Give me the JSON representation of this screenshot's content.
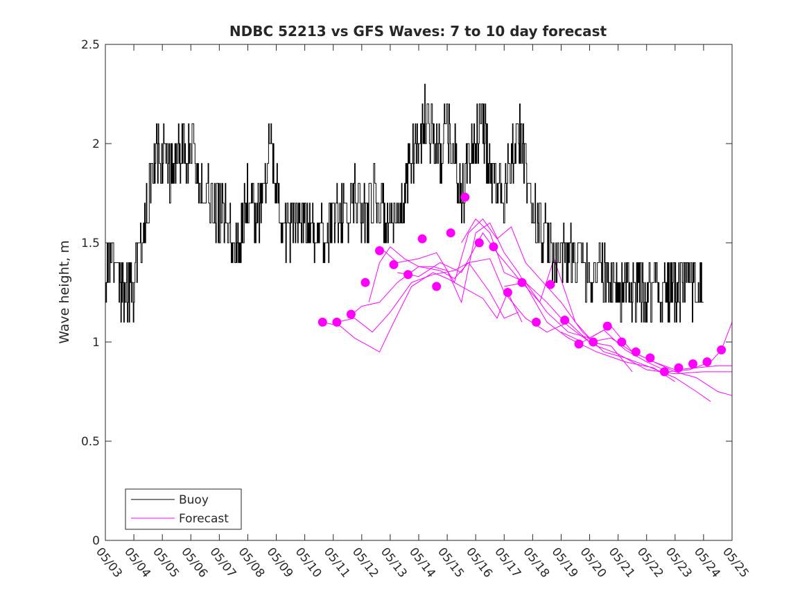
{
  "chart_data": {
    "type": "line",
    "title": "NDBC 52213 vs GFS Waves: 7 to 10 day forecast",
    "xlabel": "",
    "ylabel": "Wave height, m",
    "xlim": [
      "05/03",
      "05/25"
    ],
    "ylim": [
      0,
      2.5
    ],
    "x_ticks": [
      "05/03",
      "05/04",
      "05/05",
      "05/06",
      "05/07",
      "05/08",
      "05/09",
      "05/10",
      "05/11",
      "05/12",
      "05/13",
      "05/14",
      "05/15",
      "05/16",
      "05/17",
      "05/18",
      "05/19",
      "05/20",
      "05/21",
      "05/22",
      "05/23",
      "05/24",
      "05/25"
    ],
    "y_ticks": [
      "0",
      "0.5",
      "1",
      "1.5",
      "2",
      "2.5"
    ],
    "grid": false,
    "legend": {
      "position": "bottom-left",
      "entries": [
        "Buoy",
        "Forecast"
      ]
    },
    "colors": {
      "buoy": "#000000",
      "forecast": "#ff00ff"
    },
    "buoy": {
      "name": "Buoy",
      "anchors": [
        [
          "05/03 00:00",
          1.35
        ],
        [
          "05/03 06:00",
          1.45
        ],
        [
          "05/03 12:00",
          1.3
        ],
        [
          "05/03 18:00",
          1.25
        ],
        [
          "05/04 00:00",
          1.28
        ],
        [
          "05/04 06:00",
          1.45
        ],
        [
          "05/04 12:00",
          1.7
        ],
        [
          "05/04 18:00",
          1.95
        ],
        [
          "05/05 00:00",
          1.93
        ],
        [
          "05/05 06:00",
          1.88
        ],
        [
          "05/05 12:00",
          1.92
        ],
        [
          "05/05 18:00",
          1.98
        ],
        [
          "05/06 00:00",
          2.0
        ],
        [
          "05/06 06:00",
          1.85
        ],
        [
          "05/06 12:00",
          1.72
        ],
        [
          "05/06 18:00",
          1.68
        ],
        [
          "05/07 00:00",
          1.66
        ],
        [
          "05/07 06:00",
          1.62
        ],
        [
          "05/07 12:00",
          1.5
        ],
        [
          "05/07 18:00",
          1.55
        ],
        [
          "05/08 00:00",
          1.72
        ],
        [
          "05/08 06:00",
          1.66
        ],
        [
          "05/08 12:00",
          1.72
        ],
        [
          "05/08 18:00",
          1.95
        ],
        [
          "05/09 00:00",
          1.8
        ],
        [
          "05/09 06:00",
          1.62
        ],
        [
          "05/09 12:00",
          1.55
        ],
        [
          "05/09 18:00",
          1.62
        ],
        [
          "05/10 00:00",
          1.62
        ],
        [
          "05/10 06:00",
          1.58
        ],
        [
          "05/10 12:00",
          1.5
        ],
        [
          "05/10 18:00",
          1.55
        ],
        [
          "05/11 00:00",
          1.6
        ],
        [
          "05/11 06:00",
          1.68
        ],
        [
          "05/11 12:00",
          1.62
        ],
        [
          "05/11 18:00",
          1.75
        ],
        [
          "05/12 00:00",
          1.62
        ],
        [
          "05/12 06:00",
          1.7
        ],
        [
          "05/12 12:00",
          1.75
        ],
        [
          "05/12 18:00",
          1.62
        ],
        [
          "05/13 00:00",
          1.58
        ],
        [
          "05/13 06:00",
          1.55
        ],
        [
          "05/13 12:00",
          1.72
        ],
        [
          "05/13 18:00",
          1.95
        ],
        [
          "05/14 00:00",
          2.0
        ],
        [
          "05/14 06:00",
          2.15
        ],
        [
          "05/14 12:00",
          2.05
        ],
        [
          "05/14 18:00",
          1.92
        ],
        [
          "05/15 00:00",
          2.1
        ],
        [
          "05/15 06:00",
          1.95
        ],
        [
          "05/15 12:00",
          1.7
        ],
        [
          "05/15 18:00",
          1.9
        ],
        [
          "05/16 00:00",
          2.05
        ],
        [
          "05/16 06:00",
          2.1
        ],
        [
          "05/16 12:00",
          1.88
        ],
        [
          "05/16 18:00",
          1.82
        ],
        [
          "05/17 00:00",
          1.78
        ],
        [
          "05/17 06:00",
          1.95
        ],
        [
          "05/17 12:00",
          2.08
        ],
        [
          "05/17 18:00",
          1.85
        ],
        [
          "05/18 00:00",
          1.65
        ],
        [
          "05/18 06:00",
          1.58
        ],
        [
          "05/18 12:00",
          1.5
        ],
        [
          "05/18 18:00",
          1.45
        ],
        [
          "05/19 00:00",
          1.42
        ],
        [
          "05/19 06:00",
          1.45
        ],
        [
          "05/19 12:00",
          1.4
        ],
        [
          "05/19 18:00",
          1.38
        ],
        [
          "05/20 00:00",
          1.3
        ],
        [
          "05/20 06:00",
          1.4
        ],
        [
          "05/20 12:00",
          1.32
        ],
        [
          "05/20 18:00",
          1.35
        ],
        [
          "05/21 00:00",
          1.25
        ],
        [
          "05/21 06:00",
          1.3
        ],
        [
          "05/21 12:00",
          1.22
        ],
        [
          "05/21 18:00",
          1.28
        ],
        [
          "05/22 00:00",
          1.25
        ],
        [
          "05/22 06:00",
          1.3
        ],
        [
          "05/22 12:00",
          1.25
        ],
        [
          "05/22 18:00",
          1.28
        ],
        [
          "05/23 00:00",
          1.25
        ],
        [
          "05/23 06:00",
          1.28
        ],
        [
          "05/23 12:00",
          1.25
        ],
        [
          "05/23 18:00",
          1.3
        ],
        [
          "05/24 00:00",
          1.25
        ]
      ]
    },
    "forecast_points": [
      [
        "05/10 15:00",
        1.1
      ],
      [
        "05/11 03:00",
        1.1
      ],
      [
        "05/11 15:00",
        1.14
      ],
      [
        "05/12 03:00",
        1.3
      ],
      [
        "05/12 15:00",
        1.46
      ],
      [
        "05/13 03:00",
        1.39
      ],
      [
        "05/13 15:00",
        1.34
      ],
      [
        "05/14 03:00",
        1.52
      ],
      [
        "05/14 15:00",
        1.28
      ],
      [
        "05/15 03:00",
        1.55
      ],
      [
        "05/15 15:00",
        1.73
      ],
      [
        "05/16 03:00",
        1.5
      ],
      [
        "05/16 15:00",
        1.48
      ],
      [
        "05/17 03:00",
        1.25
      ],
      [
        "05/17 15:00",
        1.3
      ],
      [
        "05/18 03:00",
        1.1
      ],
      [
        "05/18 15:00",
        1.29
      ],
      [
        "05/19 03:00",
        1.11
      ],
      [
        "05/19 15:00",
        0.99
      ],
      [
        "05/20 03:00",
        1.0
      ],
      [
        "05/20 15:00",
        1.08
      ],
      [
        "05/21 03:00",
        1.0
      ],
      [
        "05/21 15:00",
        0.95
      ],
      [
        "05/22 03:00",
        0.92
      ],
      [
        "05/22 15:00",
        0.85
      ],
      [
        "05/23 03:00",
        0.87
      ],
      [
        "05/23 15:00",
        0.89
      ],
      [
        "05/24 03:00",
        0.9
      ],
      [
        "05/24 15:00",
        0.96
      ]
    ],
    "forecast_series": [
      {
        "values": [
          [
            "05/10 15:00",
            1.1
          ],
          [
            "05/11 06:00",
            1.08
          ],
          [
            "05/11 18:00",
            1.02
          ],
          [
            "05/12 06:00",
            0.98
          ],
          [
            "05/12 15:00",
            0.95
          ],
          [
            "05/13 03:00",
            1.1
          ],
          [
            "05/13 18:00",
            1.28
          ],
          [
            "05/14 12:00",
            1.35
          ],
          [
            "05/15 00:00",
            1.32
          ],
          [
            "05/15 12:00",
            1.28
          ],
          [
            "05/16 06:00",
            1.22
          ],
          [
            "05/16 18:00",
            1.12
          ],
          [
            "05/17 03:00",
            1.25
          ],
          [
            "05/17 15:00",
            1.1
          ]
        ]
      },
      {
        "values": [
          [
            "05/11 03:00",
            1.1
          ],
          [
            "05/11 18:00",
            1.12
          ],
          [
            "05/12 09:00",
            1.05
          ],
          [
            "05/13 00:00",
            1.15
          ],
          [
            "05/13 18:00",
            1.3
          ],
          [
            "05/14 12:00",
            1.34
          ],
          [
            "05/15 06:00",
            1.36
          ],
          [
            "05/15 18:00",
            1.4
          ],
          [
            "05/16 12:00",
            1.25
          ],
          [
            "05/17 00:00",
            1.12
          ],
          [
            "05/17 12:00",
            1.15
          ]
        ]
      },
      {
        "values": [
          [
            "05/11 12:00",
            1.12
          ],
          [
            "05/12 00:00",
            1.18
          ],
          [
            "05/12 15:00",
            1.2
          ],
          [
            "05/13 06:00",
            1.3
          ],
          [
            "05/14 00:00",
            1.38
          ],
          [
            "05/14 18:00",
            1.36
          ],
          [
            "05/15 06:00",
            1.32
          ],
          [
            "05/15 18:00",
            1.4
          ],
          [
            "05/16 12:00",
            1.42
          ],
          [
            "05/17 00:00",
            1.25
          ],
          [
            "05/17 18:00",
            1.12
          ],
          [
            "05/18 12:00",
            1.05
          ],
          [
            "05/19 06:00",
            1.1
          ],
          [
            "05/20 00:00",
            1.0
          ],
          [
            "05/20 18:00",
            0.98
          ],
          [
            "05/21 12:00",
            0.85
          ]
        ]
      },
      {
        "values": [
          [
            "05/12 06:00",
            1.2
          ],
          [
            "05/12 15:00",
            1.4
          ],
          [
            "05/13 00:00",
            1.48
          ],
          [
            "05/13 12:00",
            1.42
          ],
          [
            "05/14 00:00",
            1.38
          ],
          [
            "05/14 12:00",
            1.38
          ],
          [
            "05/15 00:00",
            1.36
          ],
          [
            "05/15 12:00",
            1.2
          ],
          [
            "05/16 00:00",
            1.55
          ],
          [
            "05/16 12:00",
            1.6
          ],
          [
            "05/17 00:00",
            1.45
          ],
          [
            "05/17 12:00",
            1.35
          ],
          [
            "05/18 12:00",
            1.1
          ],
          [
            "05/19 06:00",
            1.02
          ],
          [
            "05/20 06:00",
            0.95
          ],
          [
            "05/21 06:00",
            0.9
          ],
          [
            "05/22 06:00",
            0.87
          ],
          [
            "05/23 00:00",
            0.8
          ]
        ]
      },
      {
        "values": [
          [
            "05/12 15:00",
            1.48
          ],
          [
            "05/13 06:00",
            1.4
          ],
          [
            "05/14 00:00",
            1.42
          ],
          [
            "05/14 15:00",
            1.45
          ],
          [
            "05/15 06:00",
            1.3
          ],
          [
            "05/15 18:00",
            1.55
          ],
          [
            "05/16 06:00",
            1.62
          ],
          [
            "05/16 18:00",
            1.52
          ],
          [
            "05/17 06:00",
            1.58
          ],
          [
            "05/17 18:00",
            1.4
          ],
          [
            "05/18 12:00",
            1.28
          ],
          [
            "05/19 00:00",
            1.2
          ],
          [
            "05/19 18:00",
            1.05
          ],
          [
            "05/20 12:00",
            0.95
          ],
          [
            "05/21 06:00",
            0.92
          ],
          [
            "05/22 00:00",
            0.88
          ],
          [
            "05/23 00:00",
            0.82
          ],
          [
            "05/23 18:00",
            0.75
          ],
          [
            "05/24 06:00",
            0.7
          ]
        ]
      },
      {
        "values": [
          [
            "05/13 06:00",
            1.35
          ],
          [
            "05/14 00:00",
            1.33
          ],
          [
            "05/14 18:00",
            1.4
          ],
          [
            "05/15 12:00",
            1.35
          ],
          [
            "05/16 06:00",
            1.55
          ],
          [
            "05/16 18:00",
            1.45
          ],
          [
            "05/17 12:00",
            1.32
          ],
          [
            "05/18 06:00",
            1.2
          ],
          [
            "05/18 18:00",
            1.42
          ],
          [
            "05/19 12:00",
            1.1
          ],
          [
            "05/20 06:00",
            0.98
          ],
          [
            "05/21 00:00",
            0.94
          ],
          [
            "05/22 00:00",
            0.86
          ],
          [
            "05/23 00:00",
            0.84
          ],
          [
            "05/24 00:00",
            0.85
          ],
          [
            "05/25 00:00",
            0.85
          ]
        ]
      },
      {
        "values": [
          [
            "05/15 12:00",
            1.5
          ],
          [
            "05/16 00:00",
            1.62
          ],
          [
            "05/16 12:00",
            1.55
          ],
          [
            "05/17 00:00",
            1.35
          ],
          [
            "05/17 18:00",
            1.3
          ],
          [
            "05/18 12:00",
            1.15
          ],
          [
            "05/19 06:00",
            1.05
          ],
          [
            "05/20 00:00",
            1.02
          ],
          [
            "05/20 18:00",
            1.08
          ],
          [
            "05/21 12:00",
            0.95
          ],
          [
            "05/22 06:00",
            0.9
          ],
          [
            "05/23 00:00",
            0.85
          ],
          [
            "05/23 18:00",
            0.82
          ],
          [
            "05/24 12:00",
            0.75
          ],
          [
            "05/25 00:00",
            0.73
          ]
        ]
      },
      {
        "values": [
          [
            "05/17 00:00",
            1.28
          ],
          [
            "05/17 18:00",
            1.3
          ],
          [
            "05/18 12:00",
            1.2
          ],
          [
            "05/19 06:00",
            1.08
          ],
          [
            "05/20 00:00",
            1.0
          ],
          [
            "05/20 18:00",
            1.02
          ],
          [
            "05/21 12:00",
            0.95
          ],
          [
            "05/22 06:00",
            0.9
          ],
          [
            "05/23 00:00",
            0.86
          ],
          [
            "05/23 18:00",
            0.87
          ],
          [
            "05/24 12:00",
            0.88
          ],
          [
            "05/25 00:00",
            0.88
          ]
        ]
      },
      {
        "values": [
          [
            "05/19 00:00",
            1.05
          ],
          [
            "05/19 18:00",
            1.0
          ],
          [
            "05/20 12:00",
            1.06
          ],
          [
            "05/21 06:00",
            0.96
          ],
          [
            "05/22 00:00",
            0.9
          ],
          [
            "05/22 18:00",
            0.85
          ],
          [
            "05/23 12:00",
            0.86
          ],
          [
            "05/24 06:00",
            0.9
          ],
          [
            "05/24 15:00",
            0.96
          ],
          [
            "05/25 00:00",
            1.1
          ]
        ]
      }
    ]
  }
}
